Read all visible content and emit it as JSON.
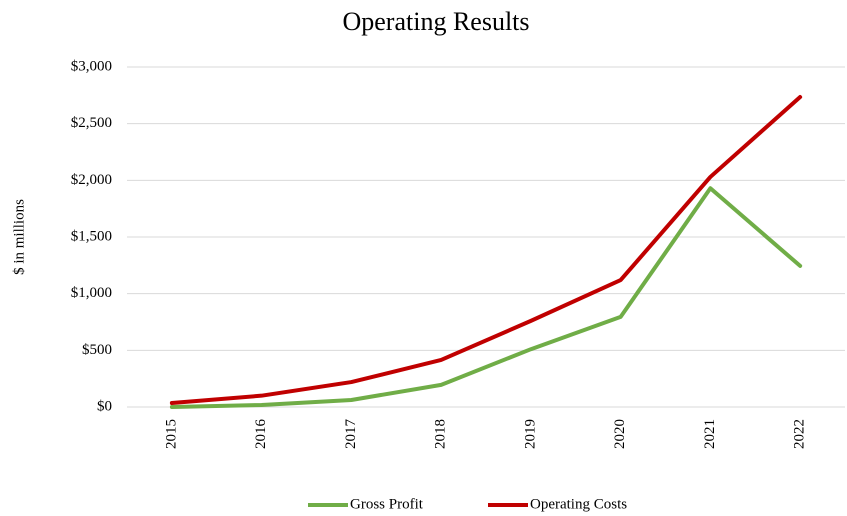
{
  "chart_data": {
    "type": "line",
    "title": "Operating Results",
    "y_label": "$ in millions",
    "categories": [
      "2015",
      "2016",
      "2017",
      "2018",
      "2019",
      "2020",
      "2021",
      "2022"
    ],
    "series": [
      {
        "name": "Gross Profit",
        "color": "#70ad47",
        "values": [
          0,
          18,
          62,
          195,
          510,
          795,
          1930,
          1245
        ]
      },
      {
        "name": "Operating Costs",
        "color": "#c00000",
        "values": [
          35,
          100,
          220,
          415,
          760,
          1120,
          2030,
          2735
        ]
      }
    ],
    "ylim": [
      0,
      3000
    ],
    "yticks": [
      {
        "value": 0,
        "label": "$0"
      },
      {
        "value": 500,
        "label": "$500"
      },
      {
        "value": 1000,
        "label": "$1,000"
      },
      {
        "value": 1500,
        "label": "$1,500"
      },
      {
        "value": 2000,
        "label": "$2,000"
      },
      {
        "value": 2500,
        "label": "$2,500"
      },
      {
        "value": 3000,
        "label": "$3,000"
      }
    ],
    "grid": true,
    "legend": "bottom"
  }
}
